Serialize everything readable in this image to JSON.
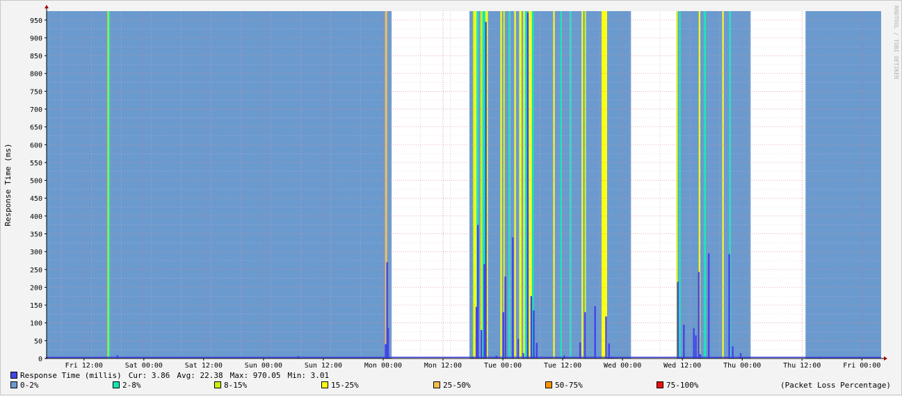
{
  "credit": "RRDTOOL / TOBI OETIKER",
  "chart_data": {
    "type": "area",
    "ylabel": "Response Time (ms)",
    "ylim": [
      0,
      975
    ],
    "yticks": [
      0,
      50,
      100,
      150,
      200,
      250,
      300,
      350,
      400,
      450,
      500,
      550,
      600,
      650,
      700,
      750,
      800,
      850,
      900,
      950
    ],
    "x_hours": [
      0,
      141
    ],
    "xticks": [
      {
        "h": 7.5,
        "label": "Fri 12:00"
      },
      {
        "h": 19.5,
        "label": "Sat 00:00"
      },
      {
        "h": 31.5,
        "label": "Sat 12:00"
      },
      {
        "h": 43.5,
        "label": "Sun 00:00"
      },
      {
        "h": 55.5,
        "label": "Sun 12:00"
      },
      {
        "h": 67.5,
        "label": "Mon 00:00"
      },
      {
        "h": 79.5,
        "label": "Mon 12:00"
      },
      {
        "h": 91.5,
        "label": "Tue 00:00"
      },
      {
        "h": 103.5,
        "label": "Tue 12:00"
      },
      {
        "h": 115.5,
        "label": "Wed 00:00"
      },
      {
        "h": 127.5,
        "label": "Wed 12:00"
      },
      {
        "h": 139.5,
        "label": "Thu 00:00"
      },
      {
        "h": 151.5,
        "label": "Thu 12:00"
      },
      {
        "h": 163.5,
        "label": "Fri 00:00"
      }
    ],
    "loss_background": [
      {
        "start": 0,
        "end": 12.2,
        "cls": "0-2%"
      },
      {
        "start": 12.2,
        "end": 12.45,
        "cls": "8-15%"
      },
      {
        "start": 12.45,
        "end": 12.7,
        "cls": "2-8%"
      },
      {
        "start": 12.7,
        "end": 67.9,
        "cls": "0-2%"
      },
      {
        "start": 67.9,
        "end": 68.3,
        "cls": "25-50%"
      },
      {
        "start": 68.3,
        "end": 69.2,
        "cls": "0-2%"
      },
      {
        "start": 84.8,
        "end": 85.5,
        "cls": "0-2%"
      },
      {
        "start": 85.5,
        "end": 85.8,
        "cls": "8-15%"
      },
      {
        "start": 85.8,
        "end": 86.2,
        "cls": "15-25%"
      },
      {
        "start": 86.2,
        "end": 86.6,
        "cls": "2-8%"
      },
      {
        "start": 86.6,
        "end": 87.0,
        "cls": "0-2%"
      },
      {
        "start": 87.0,
        "end": 87.4,
        "cls": "8-15%"
      },
      {
        "start": 87.4,
        "end": 88.0,
        "cls": "2-8%"
      },
      {
        "start": 88.0,
        "end": 88.5,
        "cls": "15-25%"
      },
      {
        "start": 88.5,
        "end": 91.0,
        "cls": "0-2%"
      },
      {
        "start": 91.0,
        "end": 91.3,
        "cls": "15-25%"
      },
      {
        "start": 91.3,
        "end": 91.6,
        "cls": "0-2%"
      },
      {
        "start": 91.6,
        "end": 91.9,
        "cls": "8-15%"
      },
      {
        "start": 91.9,
        "end": 92.7,
        "cls": "0-2%"
      },
      {
        "start": 92.7,
        "end": 93.0,
        "cls": "2-8%"
      },
      {
        "start": 93.0,
        "end": 93.8,
        "cls": "0-2%"
      },
      {
        "start": 93.8,
        "end": 94.1,
        "cls": "15-25%"
      },
      {
        "start": 94.1,
        "end": 94.8,
        "cls": "0-2%"
      },
      {
        "start": 94.8,
        "end": 95.1,
        "cls": "15-25%"
      },
      {
        "start": 95.1,
        "end": 95.3,
        "cls": "8-15%"
      },
      {
        "start": 95.3,
        "end": 95.6,
        "cls": "0-2%"
      },
      {
        "start": 95.6,
        "end": 95.9,
        "cls": "15-25%"
      },
      {
        "start": 95.9,
        "end": 96.3,
        "cls": "2-8%"
      },
      {
        "start": 96.3,
        "end": 96.7,
        "cls": "0-2%"
      },
      {
        "start": 96.7,
        "end": 97.3,
        "cls": "15-25%"
      },
      {
        "start": 97.3,
        "end": 97.7,
        "cls": "2-8%"
      },
      {
        "start": 97.7,
        "end": 101.6,
        "cls": "0-2%"
      },
      {
        "start": 101.6,
        "end": 101.9,
        "cls": "15-25%"
      },
      {
        "start": 101.9,
        "end": 103.0,
        "cls": "0-2%"
      },
      {
        "start": 103.0,
        "end": 103.3,
        "cls": "2-8%"
      },
      {
        "start": 103.3,
        "end": 104.9,
        "cls": "0-2%"
      },
      {
        "start": 104.9,
        "end": 105.2,
        "cls": "2-8%"
      },
      {
        "start": 105.2,
        "end": 107.3,
        "cls": "0-2%"
      },
      {
        "start": 107.3,
        "end": 107.6,
        "cls": "15-25%"
      },
      {
        "start": 107.6,
        "end": 107.9,
        "cls": "0-2%"
      },
      {
        "start": 107.9,
        "end": 108.2,
        "cls": "8-15%"
      },
      {
        "start": 108.2,
        "end": 111.3,
        "cls": "0-2%"
      },
      {
        "start": 111.3,
        "end": 112.4,
        "cls": "15-25%"
      },
      {
        "start": 112.4,
        "end": 117.2,
        "cls": "0-2%"
      },
      {
        "start": 126.3,
        "end": 126.6,
        "cls": "8-15%"
      },
      {
        "start": 126.6,
        "end": 126.9,
        "cls": "0-2%"
      },
      {
        "start": 126.9,
        "end": 127.2,
        "cls": "2-8%"
      },
      {
        "start": 127.2,
        "end": 130.8,
        "cls": "0-2%"
      },
      {
        "start": 130.8,
        "end": 131.1,
        "cls": "15-25%"
      },
      {
        "start": 131.1,
        "end": 131.8,
        "cls": "0-2%"
      },
      {
        "start": 131.8,
        "end": 132.2,
        "cls": "2-8%"
      },
      {
        "start": 132.2,
        "end": 135.5,
        "cls": "0-2%"
      },
      {
        "start": 135.5,
        "end": 135.8,
        "cls": "15-25%"
      },
      {
        "start": 135.8,
        "end": 136.9,
        "cls": "0-2%"
      },
      {
        "start": 136.9,
        "end": 137.2,
        "cls": "2-8%"
      },
      {
        "start": 137.2,
        "end": 141.2,
        "cls": "0-2%"
      },
      {
        "start": 152.2,
        "end": 167.5,
        "cls": "0-2%"
      }
    ],
    "series": [
      {
        "name": "Response Time (millis)",
        "points": [
          {
            "h": 0,
            "v": 3.5
          },
          {
            "h": 14.2,
            "v": 9
          },
          {
            "h": 50.5,
            "v": 7
          },
          {
            "h": 68.0,
            "v": 40
          },
          {
            "h": 68.3,
            "v": 270
          },
          {
            "h": 68.5,
            "v": 85
          },
          {
            "h": 85.5,
            "v": 5
          },
          {
            "h": 86.2,
            "v": 145
          },
          {
            "h": 86.5,
            "v": 375
          },
          {
            "h": 87.2,
            "v": 80
          },
          {
            "h": 87.8,
            "v": 265
          },
          {
            "h": 88.1,
            "v": 945
          },
          {
            "h": 90.2,
            "v": 8
          },
          {
            "h": 91.6,
            "v": 130
          },
          {
            "h": 92.0,
            "v": 230
          },
          {
            "h": 93.5,
            "v": 340
          },
          {
            "h": 94.6,
            "v": 55
          },
          {
            "h": 95.6,
            "v": 15
          },
          {
            "h": 96.5,
            "v": 970.05
          },
          {
            "h": 97.2,
            "v": 175
          },
          {
            "h": 97.7,
            "v": 135
          },
          {
            "h": 98.3,
            "v": 44
          },
          {
            "h": 103.8,
            "v": 8
          },
          {
            "h": 107.0,
            "v": 45
          },
          {
            "h": 108.0,
            "v": 130
          },
          {
            "h": 110.0,
            "v": 147
          },
          {
            "h": 112.2,
            "v": 118
          },
          {
            "h": 112.8,
            "v": 42
          },
          {
            "h": 113.4,
            "v": 5
          },
          {
            "h": 126.6,
            "v": 215
          },
          {
            "h": 127.8,
            "v": 95
          },
          {
            "h": 129.8,
            "v": 85
          },
          {
            "h": 130.2,
            "v": 65
          },
          {
            "h": 130.8,
            "v": 243
          },
          {
            "h": 131.1,
            "v": 12
          },
          {
            "h": 132.8,
            "v": 295
          },
          {
            "h": 136.9,
            "v": 293
          },
          {
            "h": 137.6,
            "v": 34
          },
          {
            "h": 139.2,
            "v": 15
          },
          {
            "h": 155.0,
            "v": 5
          },
          {
            "h": 167.5,
            "v": 3.86
          }
        ]
      }
    ],
    "stats": {
      "cur_label": "Cur:",
      "cur": "3.86",
      "avg_label": "Avg:",
      "avg": "22.38",
      "max_label": "Max:",
      "max": "970.05",
      "min_label": "Min:",
      "min": "3.01"
    },
    "legend": {
      "response": {
        "label": "Response Time (millis)",
        "color": "#4444e6"
      },
      "loss": [
        {
          "key": "0-2%",
          "label": "0-2%",
          "color": "#6b9acf"
        },
        {
          "key": "2-8%",
          "label": "2-8%",
          "color": "#11e8b5"
        },
        {
          "key": "8-15%",
          "label": "8-15%",
          "color": "#c8f20c"
        },
        {
          "key": "15-25%",
          "label": "15-25%",
          "color": "#ffff11"
        },
        {
          "key": "25-50%",
          "label": "25-50%",
          "color": "#f5bc4a"
        },
        {
          "key": "50-75%",
          "label": "50-75%",
          "color": "#ff9600"
        },
        {
          "key": "75-100%",
          "label": "75-100%",
          "color": "#ee0e0e"
        }
      ],
      "loss_note": "(Packet Loss Percentage)"
    }
  }
}
